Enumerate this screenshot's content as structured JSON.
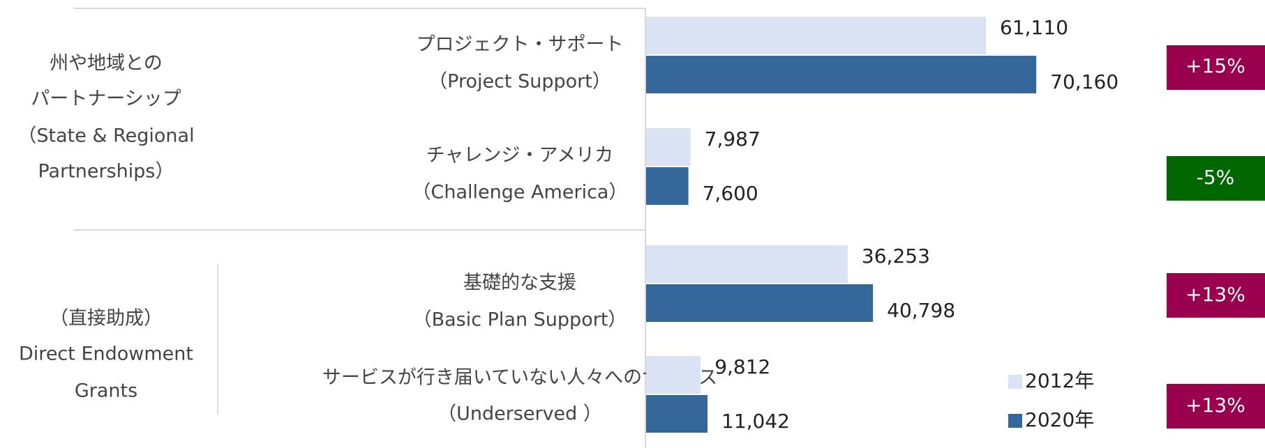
{
  "chart_data": {
    "type": "bar",
    "orientation": "horizontal",
    "groups": [
      {
        "lines": [
          "州や地域との",
          "パートナーシップ",
          "（State & Regional",
          "Partnerships）"
        ]
      },
      {
        "lines": [
          "（直接助成）",
          "Direct Endowment",
          "Grants"
        ]
      }
    ],
    "categories": [
      [
        "プロジェクト・サポート",
        "（Project Support）"
      ],
      [
        "チャレンジ・アメリカ",
        "（Challenge America）"
      ],
      [
        "基礎的な支援",
        "（Basic Plan Support）"
      ],
      [
        "サービスが行き届いていない人々へのサービス",
        "（Underserved ）"
      ]
    ],
    "series": [
      {
        "name": "2012年",
        "color": "#dae3f3",
        "values": [
          61110,
          7987,
          36253,
          9812
        ],
        "value_labels": [
          "61,110",
          "7,987",
          "36,253",
          "9,812"
        ]
      },
      {
        "name": "2020年",
        "color": "#336699",
        "values": [
          70160,
          7600,
          40798,
          11042
        ],
        "value_labels": [
          "70,160",
          "7,600",
          "40,798",
          "11,042"
        ]
      }
    ],
    "annotations": [
      {
        "text": "+15%",
        "color": "#99004d"
      },
      {
        "text": "-5%",
        "color": "#006600"
      },
      {
        "text": "+13%",
        "color": "#99004d"
      },
      {
        "text": "+13%",
        "color": "#99004d"
      }
    ],
    "xlim": [
      0,
      100000
    ],
    "legend": "bottom-right"
  }
}
